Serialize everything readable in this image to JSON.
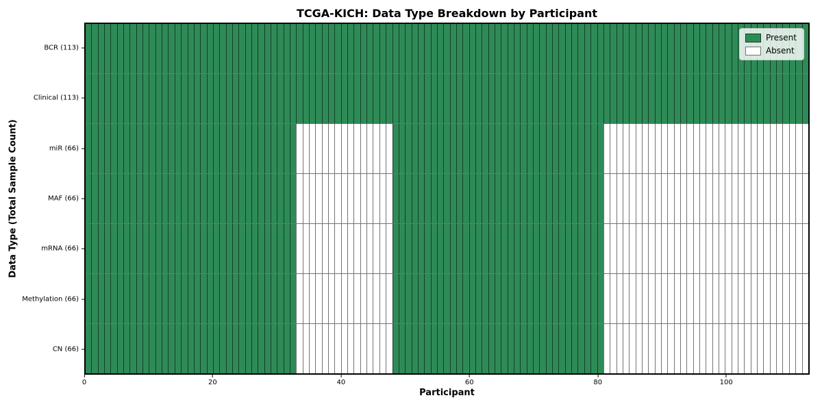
{
  "chart_data": {
    "type": "heatmap",
    "title": "TCGA-KICH: Data Type Breakdown by Participant",
    "xlabel": "Participant",
    "ylabel": "Data Type (Total Sample Count)",
    "n_participants": 113,
    "x_ticks": [
      0,
      20,
      40,
      60,
      80,
      100
    ],
    "x_range": [
      0,
      113
    ],
    "grid": false,
    "rows": [
      {
        "label": "BCR (113)",
        "total_samples": 113,
        "present_ranges": [
          [
            0,
            113
          ]
        ]
      },
      {
        "label": "Clinical (113)",
        "total_samples": 113,
        "present_ranges": [
          [
            0,
            113
          ]
        ]
      },
      {
        "label": "miR (66)",
        "total_samples": 66,
        "present_ranges": [
          [
            0,
            33
          ],
          [
            48,
            81
          ]
        ]
      },
      {
        "label": "MAF (66)",
        "total_samples": 66,
        "present_ranges": [
          [
            0,
            33
          ],
          [
            48,
            81
          ]
        ]
      },
      {
        "label": "mRNA (66)",
        "total_samples": 66,
        "present_ranges": [
          [
            0,
            33
          ],
          [
            48,
            81
          ]
        ]
      },
      {
        "label": "Methylation (66)",
        "total_samples": 66,
        "present_ranges": [
          [
            0,
            33
          ],
          [
            48,
            81
          ]
        ]
      },
      {
        "label": "CN (66)",
        "total_samples": 66,
        "present_ranges": [
          [
            0,
            33
          ],
          [
            48,
            81
          ]
        ]
      }
    ],
    "legend": {
      "position": "upper right",
      "entries": [
        {
          "label": "Present",
          "color": "#2e8b57"
        },
        {
          "label": "Absent",
          "color": "#ffffff"
        }
      ]
    },
    "colors": {
      "present": "#2e8b57",
      "absent": "#ffffff",
      "cell_edge": "rgba(0,0,0,0.55)",
      "frame": "#000000"
    }
  }
}
